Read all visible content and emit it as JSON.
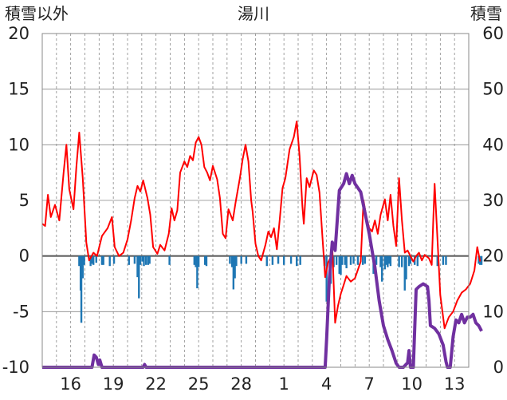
{
  "chart_data": {
    "type": "line",
    "title": "湯川",
    "left_axis_label": "積雪以外",
    "right_axis_label": "積雪",
    "left_ylim": [
      -10,
      20
    ],
    "left_yticks": [
      -10,
      -5,
      0,
      5,
      10,
      15,
      20
    ],
    "right_ylim": [
      0,
      60
    ],
    "right_yticks": [
      0,
      10,
      20,
      30,
      40,
      50,
      60
    ],
    "xlim": [
      0,
      30
    ],
    "xtick_days": [
      2,
      5,
      8,
      11,
      14,
      17,
      20,
      23,
      26,
      29
    ],
    "xtick_labels": [
      "16",
      "19",
      "22",
      "25",
      "28",
      "1",
      "4",
      "7",
      "10",
      "13"
    ],
    "grid": true,
    "colors": {
      "temperature": "#ff0000",
      "precip": "#1f77b4",
      "snow": "#7030a0",
      "zero_line": "#555555",
      "grid": "#888888",
      "frame": "#888888"
    },
    "series": [
      {
        "kind": "line",
        "axis": "left",
        "values": [
          [
            0.0,
            2.9
          ],
          [
            0.2,
            2.7
          ],
          [
            0.4,
            5.5
          ],
          [
            0.6,
            3.5
          ],
          [
            0.9,
            4.6
          ],
          [
            1.2,
            3.2
          ],
          [
            1.5,
            7.5
          ],
          [
            1.7,
            10.0
          ],
          [
            1.9,
            6.0
          ],
          [
            2.2,
            4.2
          ],
          [
            2.4,
            8.0
          ],
          [
            2.6,
            11.1
          ],
          [
            2.85,
            7.0
          ],
          [
            3.1,
            1.2
          ],
          [
            3.3,
            -0.4
          ],
          [
            3.6,
            0.3
          ],
          [
            3.85,
            0.0
          ],
          [
            4.2,
            1.8
          ],
          [
            4.6,
            2.5
          ],
          [
            4.9,
            3.5
          ],
          [
            5.1,
            0.8
          ],
          [
            5.4,
            0.0
          ],
          [
            5.7,
            0.3
          ],
          [
            6.0,
            1.5
          ],
          [
            6.25,
            3.2
          ],
          [
            6.5,
            5.2
          ],
          [
            6.7,
            6.3
          ],
          [
            6.9,
            5.8
          ],
          [
            7.1,
            6.8
          ],
          [
            7.4,
            5.2
          ],
          [
            7.6,
            3.7
          ],
          [
            7.8,
            0.8
          ],
          [
            8.1,
            0.2
          ],
          [
            8.3,
            1.0
          ],
          [
            8.6,
            0.5
          ],
          [
            8.9,
            2.0
          ],
          [
            9.1,
            4.3
          ],
          [
            9.3,
            3.2
          ],
          [
            9.5,
            4.1
          ],
          [
            9.7,
            7.5
          ],
          [
            10.0,
            8.5
          ],
          [
            10.2,
            8.0
          ],
          [
            10.4,
            9.0
          ],
          [
            10.6,
            8.6
          ],
          [
            10.8,
            10.2
          ],
          [
            11.0,
            10.7
          ],
          [
            11.2,
            10.0
          ],
          [
            11.4,
            8.0
          ],
          [
            11.6,
            7.5
          ],
          [
            11.8,
            6.8
          ],
          [
            12.0,
            8.1
          ],
          [
            12.3,
            6.9
          ],
          [
            12.5,
            5.2
          ],
          [
            12.7,
            2.0
          ],
          [
            12.9,
            1.6
          ],
          [
            13.1,
            4.2
          ],
          [
            13.4,
            3.2
          ],
          [
            13.6,
            4.8
          ],
          [
            13.9,
            7.0
          ],
          [
            14.1,
            8.7
          ],
          [
            14.3,
            10.0
          ],
          [
            14.5,
            8.5
          ],
          [
            14.7,
            5.0
          ],
          [
            14.8,
            4.0
          ],
          [
            15.0,
            1.1
          ],
          [
            15.2,
            0.0
          ],
          [
            15.4,
            -0.4
          ],
          [
            15.7,
            1.0
          ],
          [
            15.9,
            2.2
          ],
          [
            16.1,
            1.7
          ],
          [
            16.3,
            2.5
          ],
          [
            16.5,
            0.6
          ],
          [
            16.7,
            3.2
          ],
          [
            16.9,
            6.1
          ],
          [
            17.1,
            7.0
          ],
          [
            17.4,
            9.6
          ],
          [
            17.7,
            10.7
          ],
          [
            17.9,
            12.1
          ],
          [
            18.1,
            9.0
          ],
          [
            18.3,
            4.5
          ],
          [
            18.4,
            2.9
          ],
          [
            18.6,
            7.0
          ],
          [
            18.8,
            6.2
          ],
          [
            19.1,
            7.7
          ],
          [
            19.3,
            7.3
          ],
          [
            19.5,
            5.7
          ],
          [
            19.7,
            1.9
          ],
          [
            19.9,
            -1.9
          ],
          [
            20.1,
            -0.6
          ],
          [
            20.3,
            -0.1
          ],
          [
            20.4,
            0.9
          ],
          [
            20.6,
            -6.0
          ],
          [
            20.8,
            -4.5
          ],
          [
            21.0,
            -3.4
          ],
          [
            21.2,
            -2.6
          ],
          [
            21.4,
            -1.8
          ],
          [
            21.7,
            -2.3
          ],
          [
            22.0,
            -2.0
          ],
          [
            22.4,
            -0.5
          ],
          [
            22.6,
            5.0
          ],
          [
            22.8,
            3.5
          ],
          [
            23.0,
            2.5
          ],
          [
            23.2,
            2.2
          ],
          [
            23.4,
            3.2
          ],
          [
            23.6,
            2.0
          ],
          [
            23.8,
            3.7
          ],
          [
            24.1,
            5.1
          ],
          [
            24.3,
            3.2
          ],
          [
            24.5,
            5.5
          ],
          [
            24.7,
            2.7
          ],
          [
            24.9,
            0.9
          ],
          [
            25.1,
            7.0
          ],
          [
            25.3,
            3.2
          ],
          [
            25.5,
            0.3
          ],
          [
            25.7,
            0.5
          ],
          [
            25.9,
            0.0
          ],
          [
            26.1,
            -0.5
          ],
          [
            26.3,
            0.0
          ],
          [
            26.5,
            0.3
          ],
          [
            26.7,
            -0.4
          ],
          [
            26.9,
            0.1
          ],
          [
            27.2,
            -0.2
          ],
          [
            27.4,
            -0.8
          ],
          [
            27.5,
            3.0
          ],
          [
            27.6,
            6.5
          ],
          [
            27.8,
            1.5
          ],
          [
            28.0,
            -3.5
          ],
          [
            28.3,
            -6.5
          ],
          [
            28.6,
            -5.5
          ],
          [
            28.9,
            -5.0
          ],
          [
            29.2,
            -4.0
          ],
          [
            29.5,
            -3.3
          ],
          [
            29.8,
            -3.0
          ],
          [
            30.1,
            -2.5
          ],
          [
            30.4,
            -1.3
          ],
          [
            30.6,
            0.8
          ],
          [
            30.8,
            -0.5
          ]
        ]
      },
      {
        "kind": "line",
        "axis": "right",
        "values": [
          [
            0.0,
            0.0
          ],
          [
            3.5,
            0.0
          ],
          [
            3.65,
            2.2
          ],
          [
            3.8,
            1.8
          ],
          [
            3.95,
            0.5
          ],
          [
            4.05,
            1.3
          ],
          [
            4.2,
            0.0
          ],
          [
            7.1,
            0.0
          ],
          [
            7.2,
            0.5
          ],
          [
            7.3,
            0.0
          ],
          [
            19.0,
            0.0
          ],
          [
            19.9,
            0.0
          ],
          [
            20.0,
            5.0
          ],
          [
            20.2,
            16.0
          ],
          [
            20.4,
            22.5
          ],
          [
            20.6,
            21.0
          ],
          [
            20.9,
            31.8
          ],
          [
            21.2,
            33.0
          ],
          [
            21.4,
            34.8
          ],
          [
            21.6,
            33.0
          ],
          [
            21.8,
            34.5
          ],
          [
            22.0,
            33.0
          ],
          [
            22.4,
            31.5
          ],
          [
            22.7,
            27.8
          ],
          [
            23.0,
            24.0
          ],
          [
            23.2,
            21.0
          ],
          [
            23.4,
            18.0
          ],
          [
            23.7,
            12.0
          ],
          [
            24.0,
            7.5
          ],
          [
            24.3,
            5.0
          ],
          [
            24.6,
            3.0
          ],
          [
            24.9,
            0.7
          ],
          [
            25.1,
            0.0
          ],
          [
            25.4,
            0.0
          ],
          [
            25.7,
            0.8
          ],
          [
            25.8,
            3.0
          ],
          [
            25.9,
            0.0
          ],
          [
            26.1,
            0.0
          ],
          [
            26.3,
            14.0
          ],
          [
            26.5,
            14.5
          ],
          [
            26.8,
            15.0
          ],
          [
            27.1,
            14.5
          ],
          [
            27.2,
            12.0
          ],
          [
            27.3,
            7.5
          ],
          [
            27.6,
            7.0
          ],
          [
            27.9,
            6.0
          ],
          [
            28.2,
            4.0
          ],
          [
            28.4,
            1.0
          ],
          [
            28.5,
            0.0
          ],
          [
            28.7,
            0.0
          ],
          [
            28.9,
            5.5
          ],
          [
            29.1,
            8.5
          ],
          [
            29.3,
            8.0
          ],
          [
            29.5,
            9.5
          ],
          [
            29.7,
            8.0
          ],
          [
            29.9,
            9.0
          ],
          [
            30.1,
            9.0
          ],
          [
            30.3,
            9.5
          ],
          [
            30.5,
            8.0
          ],
          [
            30.7,
            7.5
          ],
          [
            30.8,
            7.0
          ],
          [
            30.9,
            6.5
          ]
        ]
      },
      {
        "kind": "bar",
        "axis": "left",
        "values": [
          [
            2.6,
            -0.9
          ],
          [
            2.7,
            -3.1
          ],
          [
            2.75,
            -6.0
          ],
          [
            2.85,
            -2.0
          ],
          [
            2.95,
            -0.8
          ],
          [
            3.4,
            -0.9
          ],
          [
            3.5,
            -0.7
          ],
          [
            3.6,
            -0.8
          ],
          [
            3.8,
            -0.6
          ],
          [
            4.2,
            -0.8
          ],
          [
            4.3,
            -0.8
          ],
          [
            4.75,
            -0.9
          ],
          [
            5.05,
            -0.7
          ],
          [
            6.1,
            -0.8
          ],
          [
            6.5,
            -0.7
          ],
          [
            6.7,
            -1.9
          ],
          [
            6.8,
            -3.8
          ],
          [
            6.9,
            -0.8
          ],
          [
            7.05,
            -0.5
          ],
          [
            7.15,
            -0.9
          ],
          [
            7.3,
            -0.8
          ],
          [
            7.45,
            -0.8
          ],
          [
            7.55,
            -0.7
          ],
          [
            8.95,
            -0.8
          ],
          [
            10.7,
            -0.8
          ],
          [
            10.8,
            -1.0
          ],
          [
            10.9,
            -2.9
          ],
          [
            11.0,
            -1.0
          ],
          [
            11.45,
            -0.8
          ],
          [
            11.55,
            -0.9
          ],
          [
            13.2,
            -0.7
          ],
          [
            13.35,
            -1.0
          ],
          [
            13.45,
            -3.0
          ],
          [
            13.55,
            -2.0
          ],
          [
            13.65,
            -0.9
          ],
          [
            14.0,
            -0.7
          ],
          [
            14.35,
            -0.7
          ],
          [
            15.8,
            -0.9
          ],
          [
            16.2,
            -0.8
          ],
          [
            16.6,
            -0.7
          ],
          [
            17.0,
            -0.8
          ],
          [
            17.5,
            -0.7
          ],
          [
            17.9,
            -0.9
          ],
          [
            18.15,
            -0.8
          ],
          [
            19.85,
            -0.9
          ],
          [
            20.0,
            -4.1
          ],
          [
            20.3,
            -2.5
          ],
          [
            20.5,
            -1.0
          ],
          [
            20.7,
            -0.8
          ],
          [
            20.9,
            -1.6
          ],
          [
            21.0,
            -1.7
          ],
          [
            21.1,
            -0.8
          ],
          [
            21.3,
            -0.8
          ],
          [
            21.4,
            -1.1
          ],
          [
            21.7,
            -0.8
          ],
          [
            21.9,
            -0.7
          ],
          [
            22.2,
            -0.8
          ],
          [
            22.55,
            -0.8
          ],
          [
            22.7,
            -0.7
          ],
          [
            23.3,
            -1.6
          ],
          [
            23.5,
            -0.8
          ],
          [
            23.8,
            -1.0
          ],
          [
            23.9,
            -2.3
          ],
          [
            24.1,
            -1.2
          ],
          [
            24.2,
            -0.8
          ],
          [
            24.3,
            -1.0
          ],
          [
            24.4,
            -0.7
          ],
          [
            24.5,
            -0.9
          ],
          [
            25.1,
            -1.0
          ],
          [
            25.3,
            -1.0
          ],
          [
            25.5,
            -3.1
          ],
          [
            25.6,
            -2.1
          ],
          [
            25.8,
            -0.9
          ],
          [
            25.9,
            -0.7
          ],
          [
            26.2,
            -0.8
          ],
          [
            26.4,
            -0.9
          ],
          [
            27.8,
            -0.9
          ],
          [
            28.2,
            -0.8
          ],
          [
            28.4,
            -0.8
          ],
          [
            30.7,
            -0.7
          ],
          [
            30.8,
            -0.8
          ],
          [
            30.9,
            -0.8
          ]
        ]
      }
    ]
  }
}
